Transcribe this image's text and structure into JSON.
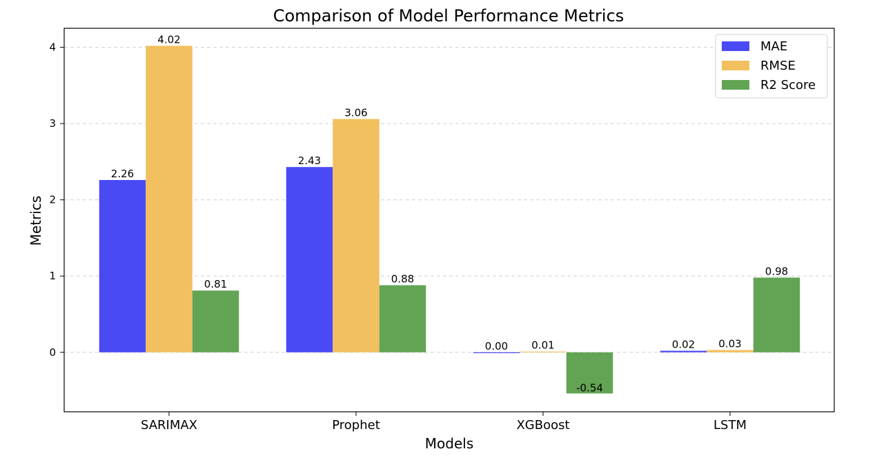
{
  "chart_data": {
    "type": "bar",
    "title": "Comparison of Model Performance Metrics",
    "xlabel": "Models",
    "ylabel": "Metrics",
    "categories": [
      "SARIMAX",
      "Prophet",
      "XGBoost",
      "LSTM"
    ],
    "series": [
      {
        "name": "MAE",
        "color": "#4a4af4",
        "values": [
          2.26,
          2.43,
          0.0,
          0.02
        ],
        "labels": [
          "2.26",
          "2.43",
          "0.00",
          "0.02"
        ]
      },
      {
        "name": "RMSE",
        "color": "#f2c05f",
        "values": [
          4.02,
          3.06,
          0.01,
          0.03
        ],
        "labels": [
          "4.02",
          "3.06",
          "0.01",
          "0.03"
        ]
      },
      {
        "name": "R2 Score",
        "color": "#62a454",
        "values": [
          0.81,
          0.88,
          -0.54,
          0.98
        ],
        "labels": [
          "0.81",
          "0.88",
          "-0.54",
          "0.98"
        ]
      }
    ],
    "ylim": [
      -0.78,
      4.25
    ],
    "yticks": [
      0,
      1,
      2,
      3,
      4
    ],
    "grid": "horizontal dashed",
    "legend_position": "top-right"
  }
}
